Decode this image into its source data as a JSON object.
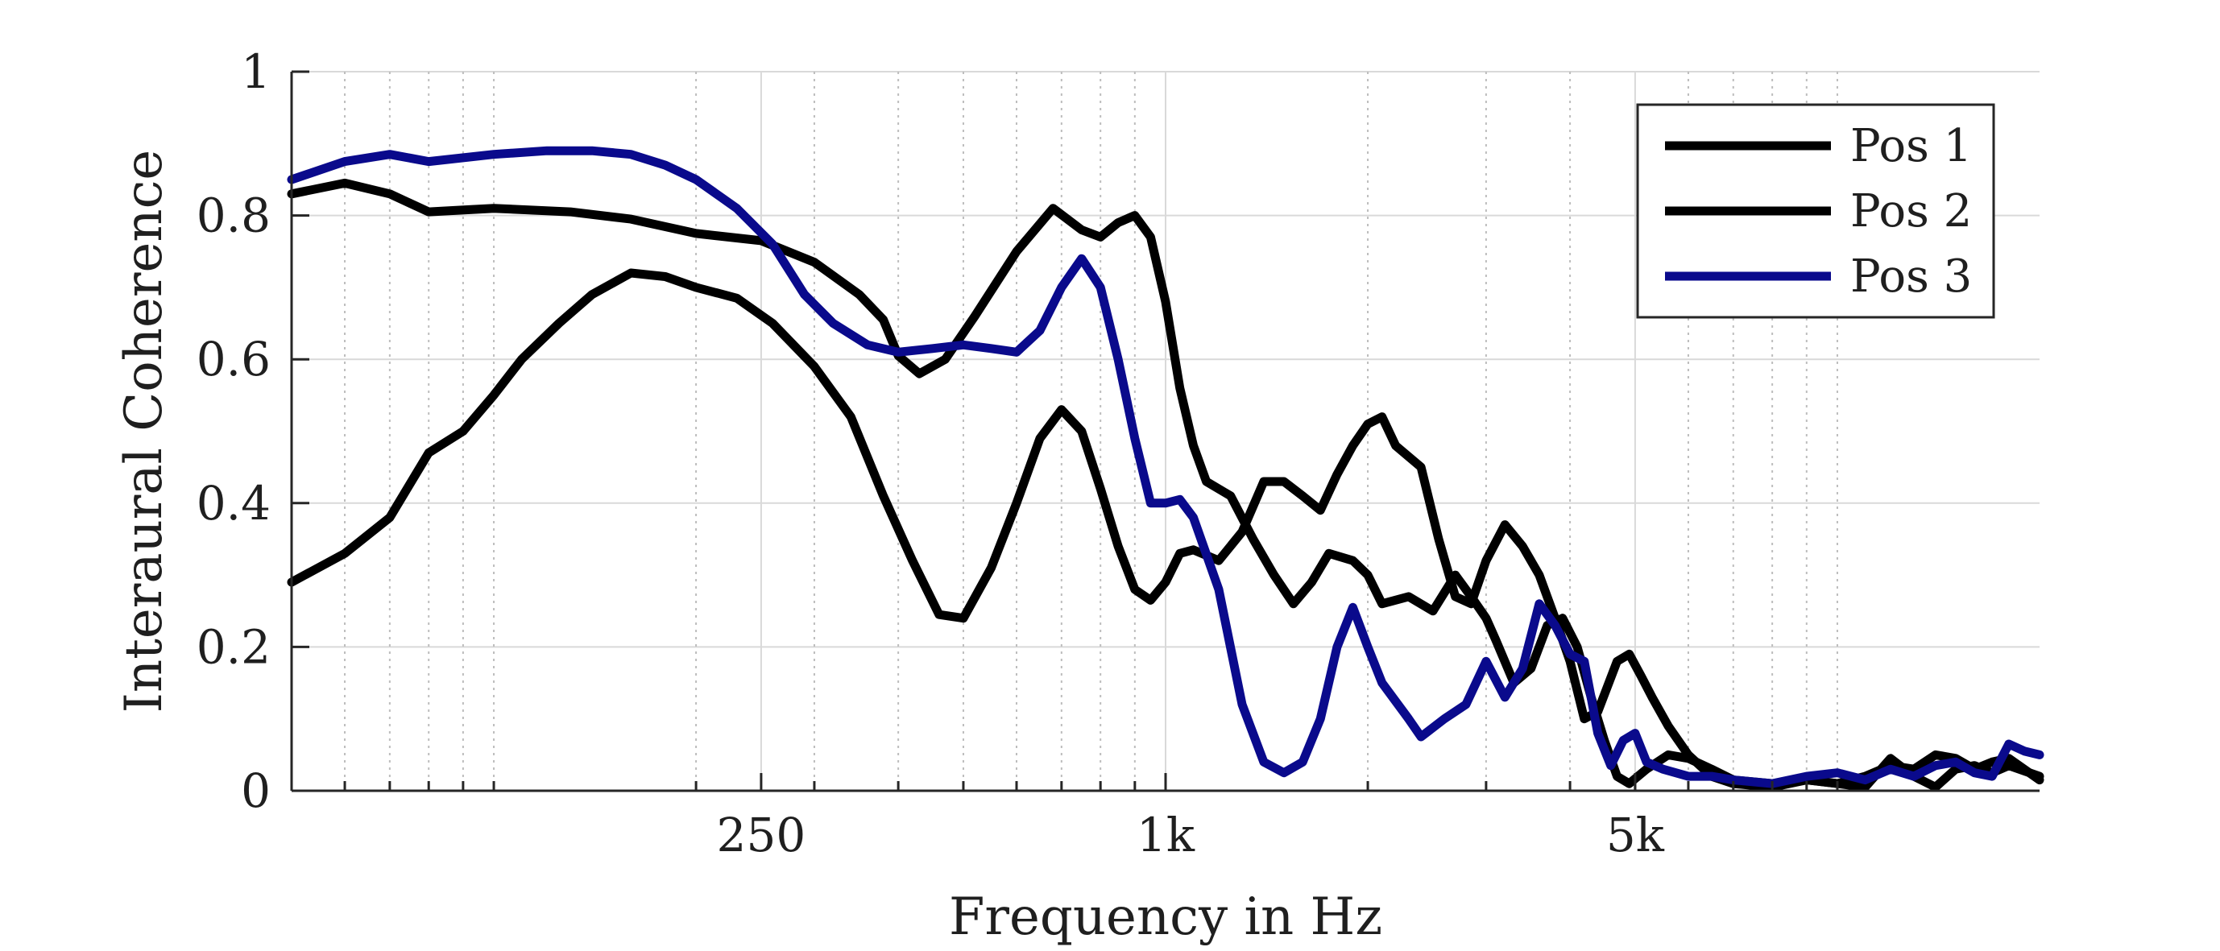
{
  "chart_data": {
    "type": "line",
    "xlabel": "Frequency in Hz",
    "ylabel": "Interaural Coherence",
    "xscale": "log",
    "xlim": [
      50,
      20000
    ],
    "ylim": [
      0,
      1
    ],
    "grid": true,
    "legend_position": "top-right",
    "x_ticks": [
      250,
      1000,
      5000
    ],
    "x_tick_labels": [
      "250",
      "1k",
      "5k"
    ],
    "y_ticks": [
      0,
      0.2,
      0.4,
      0.6,
      0.8,
      1
    ],
    "y_tick_labels": [
      "0",
      "0.2",
      "0.4",
      "0.6",
      "0.8",
      "1"
    ],
    "series": [
      {
        "name": "Pos 1",
        "color": "#000000",
        "points": [
          [
            50,
            0.83
          ],
          [
            60,
            0.845
          ],
          [
            70,
            0.83
          ],
          [
            80,
            0.805
          ],
          [
            100,
            0.81
          ],
          [
            130,
            0.805
          ],
          [
            160,
            0.795
          ],
          [
            200,
            0.775
          ],
          [
            250,
            0.765
          ],
          [
            300,
            0.735
          ],
          [
            350,
            0.69
          ],
          [
            380,
            0.655
          ],
          [
            400,
            0.605
          ],
          [
            430,
            0.58
          ],
          [
            470,
            0.6
          ],
          [
            520,
            0.66
          ],
          [
            600,
            0.75
          ],
          [
            680,
            0.81
          ],
          [
            750,
            0.78
          ],
          [
            800,
            0.77
          ],
          [
            850,
            0.79
          ],
          [
            900,
            0.8
          ],
          [
            950,
            0.77
          ],
          [
            1000,
            0.68
          ],
          [
            1050,
            0.56
          ],
          [
            1100,
            0.48
          ],
          [
            1150,
            0.43
          ],
          [
            1250,
            0.41
          ],
          [
            1350,
            0.35
          ],
          [
            1450,
            0.3
          ],
          [
            1550,
            0.26
          ],
          [
            1650,
            0.29
          ],
          [
            1750,
            0.33
          ],
          [
            1900,
            0.32
          ],
          [
            2000,
            0.3
          ],
          [
            2100,
            0.26
          ],
          [
            2300,
            0.27
          ],
          [
            2500,
            0.25
          ],
          [
            2700,
            0.3
          ],
          [
            2850,
            0.27
          ],
          [
            3000,
            0.24
          ],
          [
            3100,
            0.21
          ],
          [
            3300,
            0.15
          ],
          [
            3500,
            0.17
          ],
          [
            3700,
            0.23
          ],
          [
            3900,
            0.24
          ],
          [
            4100,
            0.2
          ],
          [
            4300,
            0.13
          ],
          [
            4500,
            0.07
          ],
          [
            4700,
            0.02
          ],
          [
            4900,
            0.01
          ],
          [
            5200,
            0.03
          ],
          [
            5600,
            0.05
          ],
          [
            6000,
            0.045
          ],
          [
            6500,
            0.03
          ],
          [
            7000,
            0.015
          ],
          [
            8000,
            0.01
          ],
          [
            9000,
            0.015
          ],
          [
            10000,
            0.01
          ],
          [
            11000,
            0.005
          ],
          [
            12000,
            0.045
          ],
          [
            13000,
            0.02
          ],
          [
            14000,
            0.005
          ],
          [
            15000,
            0.03
          ],
          [
            16000,
            0.035
          ],
          [
            17000,
            0.025
          ],
          [
            18000,
            0.035
          ],
          [
            20000,
            0.02
          ]
        ]
      },
      {
        "name": "Pos 2",
        "color": "#000000",
        "points": [
          [
            50,
            0.29
          ],
          [
            60,
            0.33
          ],
          [
            70,
            0.38
          ],
          [
            80,
            0.47
          ],
          [
            90,
            0.5
          ],
          [
            100,
            0.55
          ],
          [
            110,
            0.6
          ],
          [
            125,
            0.65
          ],
          [
            140,
            0.69
          ],
          [
            160,
            0.72
          ],
          [
            180,
            0.715
          ],
          [
            200,
            0.7
          ],
          [
            230,
            0.685
          ],
          [
            260,
            0.65
          ],
          [
            300,
            0.59
          ],
          [
            340,
            0.52
          ],
          [
            380,
            0.41
          ],
          [
            420,
            0.32
          ],
          [
            460,
            0.245
          ],
          [
            500,
            0.24
          ],
          [
            550,
            0.31
          ],
          [
            600,
            0.4
          ],
          [
            650,
            0.49
          ],
          [
            700,
            0.53
          ],
          [
            750,
            0.5
          ],
          [
            800,
            0.42
          ],
          [
            850,
            0.34
          ],
          [
            900,
            0.28
          ],
          [
            950,
            0.265
          ],
          [
            1000,
            0.29
          ],
          [
            1050,
            0.33
          ],
          [
            1100,
            0.335
          ],
          [
            1200,
            0.32
          ],
          [
            1300,
            0.36
          ],
          [
            1400,
            0.43
          ],
          [
            1500,
            0.43
          ],
          [
            1600,
            0.41
          ],
          [
            1700,
            0.39
          ],
          [
            1800,
            0.44
          ],
          [
            1900,
            0.48
          ],
          [
            2000,
            0.51
          ],
          [
            2100,
            0.52
          ],
          [
            2200,
            0.48
          ],
          [
            2400,
            0.45
          ],
          [
            2550,
            0.35
          ],
          [
            2700,
            0.27
          ],
          [
            2850,
            0.26
          ],
          [
            3000,
            0.32
          ],
          [
            3200,
            0.37
          ],
          [
            3400,
            0.34
          ],
          [
            3600,
            0.3
          ],
          [
            3800,
            0.24
          ],
          [
            4000,
            0.18
          ],
          [
            4200,
            0.1
          ],
          [
            4400,
            0.11
          ],
          [
            4700,
            0.18
          ],
          [
            4900,
            0.19
          ],
          [
            5100,
            0.16
          ],
          [
            5300,
            0.13
          ],
          [
            5600,
            0.09
          ],
          [
            6000,
            0.05
          ],
          [
            6500,
            0.02
          ],
          [
            7000,
            0.01
          ],
          [
            8000,
            0.005
          ],
          [
            9000,
            0.015
          ],
          [
            10000,
            0.01
          ],
          [
            11000,
            0.02
          ],
          [
            12000,
            0.035
          ],
          [
            13000,
            0.03
          ],
          [
            14000,
            0.05
          ],
          [
            15000,
            0.045
          ],
          [
            16000,
            0.03
          ],
          [
            17000,
            0.04
          ],
          [
            18000,
            0.045
          ],
          [
            20000,
            0.015
          ]
        ]
      },
      {
        "name": "Pos 3",
        "color": "#0a0a8c",
        "points": [
          [
            50,
            0.85
          ],
          [
            60,
            0.875
          ],
          [
            70,
            0.885
          ],
          [
            80,
            0.875
          ],
          [
            100,
            0.885
          ],
          [
            120,
            0.89
          ],
          [
            140,
            0.89
          ],
          [
            160,
            0.885
          ],
          [
            180,
            0.87
          ],
          [
            200,
            0.85
          ],
          [
            230,
            0.81
          ],
          [
            260,
            0.76
          ],
          [
            290,
            0.69
          ],
          [
            320,
            0.65
          ],
          [
            360,
            0.62
          ],
          [
            400,
            0.61
          ],
          [
            450,
            0.615
          ],
          [
            500,
            0.62
          ],
          [
            550,
            0.615
          ],
          [
            600,
            0.61
          ],
          [
            650,
            0.64
          ],
          [
            700,
            0.7
          ],
          [
            750,
            0.74
          ],
          [
            800,
            0.7
          ],
          [
            850,
            0.6
          ],
          [
            900,
            0.49
          ],
          [
            950,
            0.4
          ],
          [
            1000,
            0.4
          ],
          [
            1050,
            0.405
          ],
          [
            1100,
            0.38
          ],
          [
            1200,
            0.28
          ],
          [
            1300,
            0.12
          ],
          [
            1400,
            0.04
          ],
          [
            1500,
            0.025
          ],
          [
            1600,
            0.04
          ],
          [
            1700,
            0.1
          ],
          [
            1800,
            0.2
          ],
          [
            1900,
            0.255
          ],
          [
            2000,
            0.2
          ],
          [
            2100,
            0.15
          ],
          [
            2300,
            0.1
          ],
          [
            2400,
            0.075
          ],
          [
            2600,
            0.1
          ],
          [
            2800,
            0.12
          ],
          [
            3000,
            0.18
          ],
          [
            3200,
            0.13
          ],
          [
            3400,
            0.17
          ],
          [
            3600,
            0.26
          ],
          [
            3800,
            0.23
          ],
          [
            4000,
            0.19
          ],
          [
            4200,
            0.18
          ],
          [
            4400,
            0.08
          ],
          [
            4600,
            0.035
          ],
          [
            4800,
            0.07
          ],
          [
            5000,
            0.08
          ],
          [
            5200,
            0.04
          ],
          [
            5500,
            0.03
          ],
          [
            6000,
            0.02
          ],
          [
            6500,
            0.02
          ],
          [
            7000,
            0.015
          ],
          [
            8000,
            0.01
          ],
          [
            9000,
            0.02
          ],
          [
            10000,
            0.025
          ],
          [
            11000,
            0.015
          ],
          [
            12000,
            0.03
          ],
          [
            13000,
            0.02
          ],
          [
            14000,
            0.035
          ],
          [
            15000,
            0.04
          ],
          [
            16000,
            0.025
          ],
          [
            17000,
            0.02
          ],
          [
            18000,
            0.065
          ],
          [
            19000,
            0.055
          ],
          [
            20000,
            0.05
          ]
        ]
      }
    ]
  }
}
